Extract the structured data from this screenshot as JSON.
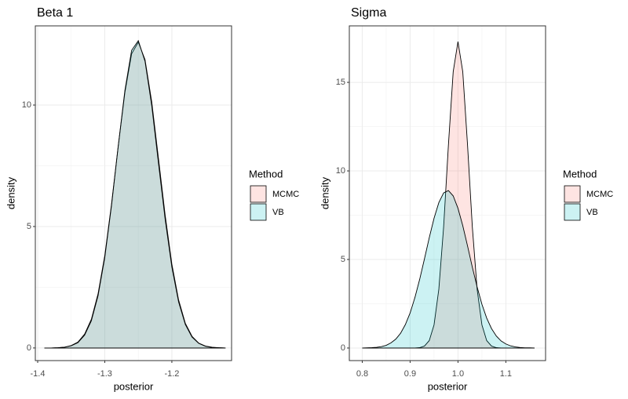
{
  "chart_data": [
    {
      "type": "density",
      "title": "Beta 1",
      "x_label": "posterior",
      "y_label": "density",
      "legend_title": "Method",
      "x": [
        -1.39,
        -1.38,
        -1.37,
        -1.36,
        -1.35,
        -1.34,
        -1.33,
        -1.32,
        -1.31,
        -1.3,
        -1.29,
        -1.28,
        -1.27,
        -1.26,
        -1.25,
        -1.24,
        -1.23,
        -1.22,
        -1.21,
        -1.2,
        -1.19,
        -1.18,
        -1.17,
        -1.16,
        -1.15,
        -1.14,
        -1.13,
        -1.12
      ],
      "series": [
        {
          "name": "MCMC",
          "color": "#F8766D",
          "values": [
            0.0,
            0.0,
            0.01,
            0.03,
            0.1,
            0.24,
            0.57,
            1.18,
            2.23,
            3.8,
            5.91,
            8.29,
            10.52,
            12.11,
            12.59,
            11.87,
            10.13,
            7.81,
            5.47,
            3.45,
            1.98,
            1.02,
            0.48,
            0.2,
            0.08,
            0.03,
            0.01,
            0.0
          ]
        },
        {
          "name": "VB",
          "color": "#00BFC4",
          "values": [
            0.0,
            0.0,
            0.01,
            0.03,
            0.09,
            0.22,
            0.53,
            1.12,
            2.15,
            3.72,
            5.85,
            8.3,
            10.6,
            12.25,
            12.65,
            11.8,
            9.98,
            7.62,
            5.3,
            3.33,
            1.9,
            0.97,
            0.45,
            0.19,
            0.07,
            0.02,
            0.01,
            0.0
          ]
        }
      ],
      "xlim": [
        -1.4035,
        -1.111
      ],
      "ylim": [
        -0.52,
        13.26
      ],
      "xticks": [
        -1.4,
        -1.3,
        -1.2
      ],
      "yticks": [
        0,
        5,
        10
      ],
      "grid": true
    },
    {
      "type": "density",
      "title": "Sigma",
      "x_label": "posterior",
      "y_label": "density",
      "legend_title": "Method",
      "x": [
        0.8,
        0.81,
        0.82,
        0.83,
        0.84,
        0.85,
        0.86,
        0.87,
        0.88,
        0.89,
        0.9,
        0.91,
        0.92,
        0.93,
        0.94,
        0.95,
        0.96,
        0.97,
        0.98,
        0.99,
        1.0,
        1.01,
        1.02,
        1.03,
        1.04,
        1.05,
        1.06,
        1.07,
        1.08,
        1.09,
        1.1,
        1.11,
        1.12,
        1.13,
        1.14,
        1.15,
        1.16
      ],
      "series": [
        {
          "name": "MCMC",
          "color": "#F8766D",
          "values": [
            0.0,
            0.0,
            0.0,
            0.0,
            0.0,
            0.0,
            0.0,
            0.0,
            0.0,
            0.0,
            0.0,
            0.0,
            0.02,
            0.11,
            0.42,
            1.31,
            3.32,
            6.83,
            11.45,
            15.6,
            17.3,
            15.6,
            11.45,
            6.83,
            3.32,
            1.31,
            0.42,
            0.11,
            0.02,
            0.0,
            0.0,
            0.0,
            0.0,
            0.0,
            0.0,
            0.0,
            0.0
          ]
        },
        {
          "name": "VB",
          "color": "#00BFC4",
          "values": [
            0.0,
            0.01,
            0.02,
            0.04,
            0.08,
            0.15,
            0.29,
            0.5,
            0.83,
            1.32,
            1.98,
            2.85,
            3.88,
            5.04,
            6.23,
            7.33,
            8.21,
            8.76,
            8.89,
            8.59,
            7.89,
            6.91,
            5.76,
            4.56,
            3.45,
            2.47,
            1.69,
            1.1,
            0.68,
            0.4,
            0.23,
            0.12,
            0.06,
            0.03,
            0.01,
            0.01,
            0.0
          ]
        }
      ],
      "xlim": [
        0.773,
        1.183
      ],
      "ylim": [
        -0.71,
        18.19
      ],
      "xticks": [
        0.8,
        0.9,
        {
          "value": 1,
          "label": "1.0"
        },
        1.1
      ],
      "yticks": [
        0,
        5,
        10,
        15
      ],
      "grid": true
    }
  ]
}
